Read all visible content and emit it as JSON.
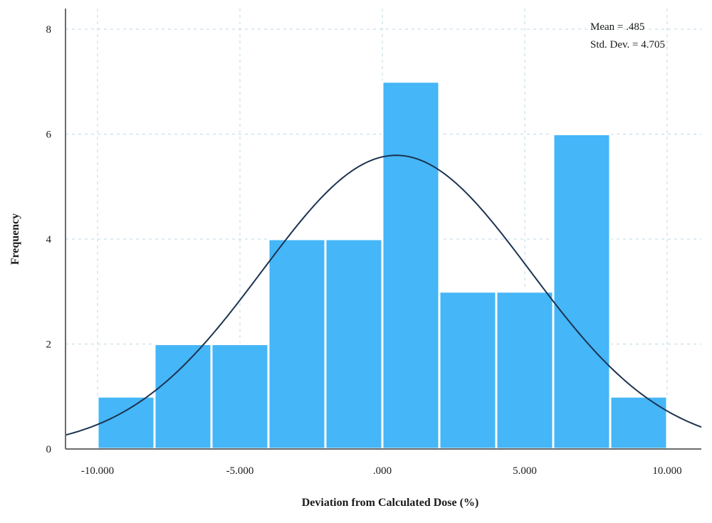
{
  "chart_data": {
    "type": "bar",
    "subtype": "histogram",
    "xlabel": "Deviation from Calculated Dose (%)",
    "ylabel": "Frequency",
    "xlim": [
      -11.5,
      11.0
    ],
    "ylim": [
      0,
      8
    ],
    "x_ticks": [
      -10,
      -5,
      0,
      5,
      10
    ],
    "x_tick_labels": [
      "-10.000",
      "-5.000",
      ".000",
      "5.000",
      "10.000"
    ],
    "y_ticks": [
      0,
      2,
      4,
      6,
      8
    ],
    "y_tick_labels": [
      "0",
      "2",
      "4",
      "6",
      "8"
    ],
    "bins": [
      {
        "start": -10.0,
        "end": -8.0,
        "count": 1
      },
      {
        "start": -8.0,
        "end": -6.0,
        "count": 2
      },
      {
        "start": -6.0,
        "end": -4.0,
        "count": 2
      },
      {
        "start": -4.0,
        "end": -2.0,
        "count": 4
      },
      {
        "start": -2.0,
        "end": 0.0,
        "count": 4
      },
      {
        "start": 0.0,
        "end": 2.0,
        "count": 7
      },
      {
        "start": 2.0,
        "end": 4.0,
        "count": 3
      },
      {
        "start": 4.0,
        "end": 6.0,
        "count": 3
      },
      {
        "start": 6.0,
        "end": 8.0,
        "count": 6
      },
      {
        "start": 8.0,
        "end": 10.0,
        "count": 1
      }
    ],
    "normal_curve": {
      "mean": 0.485,
      "std_dev": 4.705,
      "n": 33,
      "bin_width": 2.0
    },
    "stats": {
      "mean_text": "Mean = .485",
      "std_text": "Std. Dev. = 4.705"
    },
    "grid": true,
    "colors": {
      "bar": "#45b6f7",
      "curve": "#1c3350",
      "axis": "#6b6b6b",
      "grid": "#bcd8e6"
    }
  }
}
